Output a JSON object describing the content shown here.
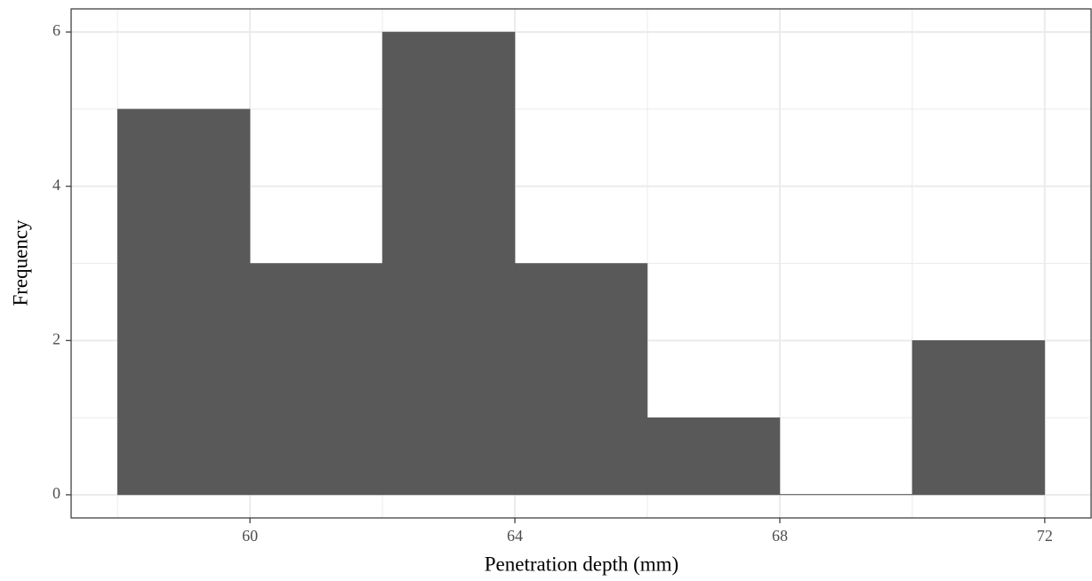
{
  "chart_data": {
    "type": "histogram",
    "x_label": "Penetration depth (mm)",
    "y_label": "Frequency",
    "bins": [
      58,
      60,
      62,
      64,
      66,
      68,
      70,
      72
    ],
    "values": [
      5,
      3,
      6,
      3,
      1,
      0,
      2
    ],
    "color": "#595959",
    "xlim": [
      57.3,
      72.7
    ],
    "ylim": [
      -0.3,
      6.3
    ],
    "xticks": [
      60,
      64,
      68,
      72
    ],
    "yticks": [
      0,
      2,
      4,
      6
    ],
    "x_minor_ticks": [
      58,
      62,
      66,
      70
    ],
    "y_minor_ticks": [
      1,
      3,
      5
    ],
    "grid": true
  }
}
